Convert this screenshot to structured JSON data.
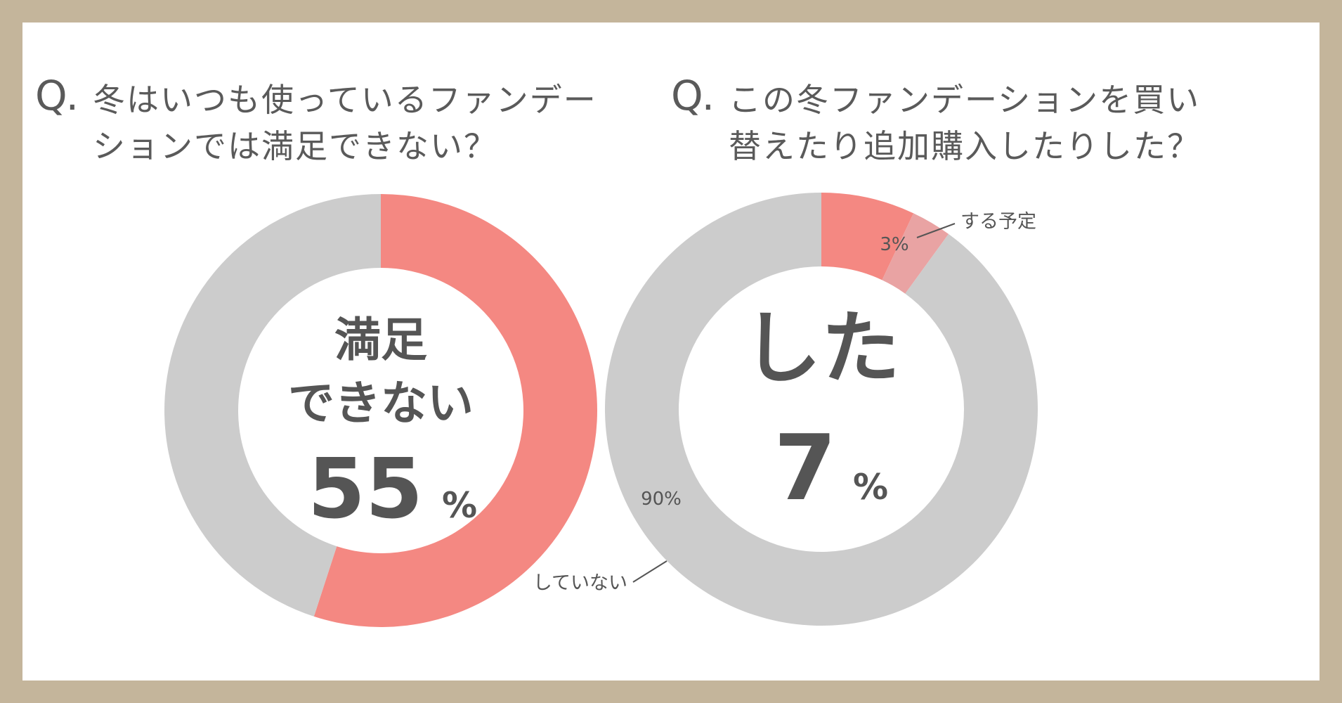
{
  "chart_data": [
    {
      "type": "pie",
      "question_mark": "Q.",
      "title_lines": [
        "冬はいつも使っているファンデー",
        "ションでは満足できない？"
      ],
      "center_lines": [
        "満足",
        "できない"
      ],
      "center_value": "55",
      "center_unit": "%",
      "slices": [
        {
          "name": "満足できない",
          "value": 55,
          "color": "#f48882"
        },
        {
          "name": "",
          "value": 45,
          "color": "#cccccc"
        }
      ]
    },
    {
      "type": "pie",
      "question_mark": "Q.",
      "title_lines": [
        "この冬ファンデーションを買い",
        "替えたり追加購入したりした？"
      ],
      "center_lines": [
        "した"
      ],
      "center_value": "7",
      "center_unit": "%",
      "slices": [
        {
          "name": "した",
          "value": 7,
          "color": "#f48882",
          "label": ""
        },
        {
          "name": "する予定",
          "value": 3,
          "color": "#e9a3a3",
          "label": "3%"
        },
        {
          "name": "していない",
          "value": 90,
          "color": "#cccccc",
          "label": "90%"
        }
      ]
    }
  ]
}
